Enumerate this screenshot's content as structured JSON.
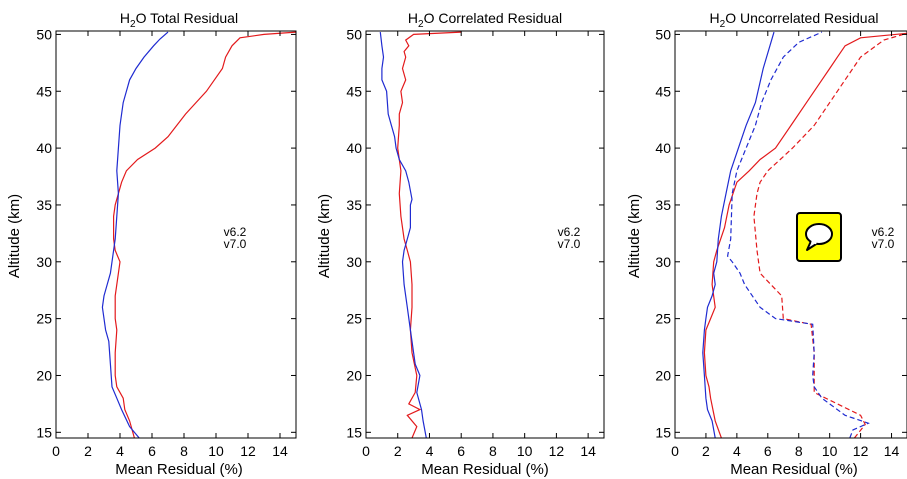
{
  "colors": {
    "v6.2": "#e31a1c",
    "v7.0": "#1f2bd1",
    "axes": "#000000",
    "icon_background": "#ffff00"
  },
  "icons": {
    "comment": "speech-bubble-icon"
  },
  "chart_data": [
    {
      "type": "line",
      "title_prefix": "H",
      "title_sub": "2",
      "title_rest": "O Total Residual",
      "xlabel": "Mean Residual (%)",
      "ylabel": "Altitude (km)",
      "xlim": [
        0,
        15
      ],
      "ylim": [
        14.5,
        50.3
      ],
      "xticks": [
        0,
        2,
        4,
        6,
        8,
        10,
        12,
        14
      ],
      "yticks": [
        15,
        20,
        25,
        30,
        35,
        40,
        45,
        50
      ],
      "grid": false,
      "legend": {
        "placement": "right-middle",
        "entries": [
          "v6.2",
          "v7.0"
        ]
      },
      "series": [
        {
          "name": "v6.2",
          "color": "#e31a1c",
          "style": "solid",
          "x": [
            4.9,
            4.6,
            4.3,
            4.2,
            3.8,
            3.7,
            3.7,
            3.8,
            3.7,
            3.7,
            3.9,
            4.0,
            3.7,
            3.6,
            3.6,
            3.7,
            4.1,
            4.4,
            5.1,
            6.2,
            7.0,
            8.1,
            9.4,
            10.4,
            10.6,
            11.0,
            11.5,
            13.0,
            15.0
          ],
          "y": [
            14.5,
            16,
            17,
            18,
            19,
            20,
            22,
            24,
            25,
            27,
            29,
            30,
            31,
            32,
            34,
            35,
            37,
            38,
            39,
            40,
            41,
            43,
            45,
            47,
            48,
            49,
            49.7,
            50.0,
            50.2
          ]
        },
        {
          "name": "v7.0",
          "color": "#1f2bd1",
          "style": "solid",
          "x": [
            5.2,
            4.6,
            4.1,
            3.8,
            3.5,
            3.4,
            3.3,
            3.1,
            3.0,
            2.9,
            3.0,
            3.2,
            3.4,
            3.5,
            3.7,
            3.8,
            3.9,
            3.8,
            3.9,
            4.0,
            4.2,
            4.6,
            5.0,
            5.5,
            6.1,
            6.5,
            7.0
          ],
          "y": [
            14.5,
            15.5,
            17,
            18,
            19,
            21,
            23,
            24,
            25,
            26,
            27,
            28,
            29,
            30,
            32,
            34,
            36,
            38,
            40,
            42,
            44,
            46,
            47,
            48,
            49,
            49.6,
            50.2
          ]
        }
      ]
    },
    {
      "type": "line",
      "title_prefix": "H",
      "title_sub": "2",
      "title_rest": "O Correlated Residual",
      "xlabel": "Mean Residual (%)",
      "ylabel": "Altitude (km)",
      "xlim": [
        0,
        15
      ],
      "ylim": [
        14.5,
        50.3
      ],
      "xticks": [
        0,
        2,
        4,
        6,
        8,
        10,
        12,
        14
      ],
      "yticks": [
        15,
        20,
        25,
        30,
        35,
        40,
        45,
        50
      ],
      "grid": false,
      "legend": {
        "placement": "right-middle",
        "entries": [
          "v6.2",
          "v7.0"
        ]
      },
      "series": [
        {
          "name": "v6.2",
          "color": "#e31a1c",
          "style": "solid",
          "x": [
            2.9,
            3.2,
            2.6,
            3.4,
            2.7,
            3.1,
            3.2,
            2.9,
            2.8,
            2.9,
            2.9,
            2.8,
            2.6,
            2.4,
            2.2,
            2.1,
            2.2,
            2.0,
            2.1,
            2.1,
            2.3,
            2.2,
            2.5,
            2.3,
            2.5,
            2.4,
            2.7,
            2.5,
            3.0,
            6.0
          ],
          "y": [
            14.5,
            15.5,
            16.5,
            17,
            17.5,
            18.5,
            20,
            22,
            24,
            26,
            28,
            30,
            31,
            32,
            34,
            36,
            38,
            40,
            42,
            43,
            44,
            45,
            46,
            47,
            48,
            48.5,
            49,
            49.5,
            50.0,
            50.2
          ]
        },
        {
          "name": "v7.0",
          "color": "#1f2bd1",
          "style": "solid",
          "x": [
            3.8,
            3.6,
            3.5,
            3.2,
            3.4,
            3.1,
            3.0,
            2.8,
            2.6,
            2.4,
            2.3,
            2.4,
            2.6,
            2.8,
            2.8,
            2.8,
            2.9,
            2.7,
            2.5,
            2.1,
            1.9,
            1.8,
            1.6,
            1.4,
            1.3,
            1.0,
            1.0,
            1.1,
            1.0,
            0.9
          ],
          "y": [
            14.5,
            16,
            17,
            18.5,
            20,
            21,
            22,
            24,
            26,
            28,
            30,
            31,
            32,
            33,
            34,
            35,
            35.5,
            37,
            38,
            39,
            40,
            41,
            42,
            43,
            45,
            46,
            47,
            48,
            49,
            50.2
          ]
        }
      ]
    },
    {
      "type": "line",
      "title_prefix": "H",
      "title_sub": "2",
      "title_rest": "O Uncorrelated Residual",
      "xlabel": "Mean Residual (%)",
      "ylabel": "Altitude (km)",
      "xlim": [
        0,
        15
      ],
      "ylim": [
        14.5,
        50.3
      ],
      "xticks": [
        0,
        2,
        4,
        6,
        8,
        10,
        12,
        14
      ],
      "yticks": [
        15,
        20,
        25,
        30,
        35,
        40,
        45,
        50
      ],
      "grid": false,
      "legend": {
        "placement": "right-middle",
        "entries": [
          "v6.2",
          "v7.0"
        ]
      },
      "series": [
        {
          "name": "v6.2",
          "color": "#e31a1c",
          "style": "solid",
          "x": [
            3.0,
            2.6,
            2.3,
            2.2,
            2.0,
            1.9,
            2.0,
            2.3,
            2.6,
            2.4,
            2.5,
            2.7,
            3.2,
            3.5,
            4.0,
            4.8,
            5.5,
            6.5,
            7.5,
            8.5,
            9.5,
            10.0,
            10.5,
            11.0,
            12.0,
            15.0
          ],
          "y": [
            14.5,
            16,
            18,
            19,
            20,
            22,
            24,
            25,
            26,
            28,
            30,
            31,
            33,
            35,
            37,
            38,
            39,
            40,
            42,
            44,
            46,
            47,
            48,
            49,
            49.7,
            50.1
          ]
        },
        {
          "name": "v7.0",
          "color": "#1f2bd1",
          "style": "solid",
          "x": [
            2.6,
            2.4,
            2.1,
            2.0,
            1.9,
            1.8,
            1.9,
            2.0,
            2.1,
            2.4,
            2.6,
            2.5,
            2.7,
            2.8,
            3.0,
            3.3,
            3.6,
            4.1,
            4.6,
            5.2,
            5.7,
            6.4
          ],
          "y": [
            14.5,
            16,
            17,
            18,
            20,
            22,
            24,
            25,
            26,
            27,
            28,
            29,
            30,
            32,
            34,
            36,
            38,
            40,
            42,
            44,
            47,
            50.2
          ]
        },
        {
          "name": "v6.2",
          "color": "#e31a1c",
          "style": "dashed",
          "x": [
            11.6,
            12.3,
            12.0,
            9.0,
            9.0,
            9.0,
            8.8,
            7.0,
            6.9,
            5.5,
            5.3,
            5.1,
            5.3,
            5.5,
            6.0,
            6.8,
            7.6,
            9.0,
            10.0,
            11.0,
            12.0,
            13.5,
            15.0
          ],
          "y": [
            14.5,
            15.7,
            16.5,
            18.5,
            20,
            22,
            24.5,
            25,
            27,
            29,
            31,
            34,
            36,
            37,
            38,
            39,
            40,
            42,
            44,
            46,
            48,
            49.5,
            50.1
          ]
        },
        {
          "name": "v7.0",
          "color": "#1f2bd1",
          "style": "dashed",
          "x": [
            11.3,
            11.5,
            12.5,
            11.0,
            9.5,
            9.0,
            8.9,
            9.0,
            8.9,
            6.5,
            5.5,
            4.5,
            4.2,
            3.7,
            3.4,
            3.6,
            3.7,
            4.0,
            4.6,
            5.2,
            5.6,
            6.2,
            7.0,
            8.0,
            9.5
          ],
          "y": [
            14.5,
            15.2,
            15.8,
            16.5,
            18,
            19,
            20,
            22,
            24.5,
            25,
            26,
            28,
            29,
            30,
            30.5,
            32,
            36,
            38,
            40,
            42,
            44,
            46,
            48,
            49.3,
            50.2
          ]
        }
      ]
    }
  ]
}
